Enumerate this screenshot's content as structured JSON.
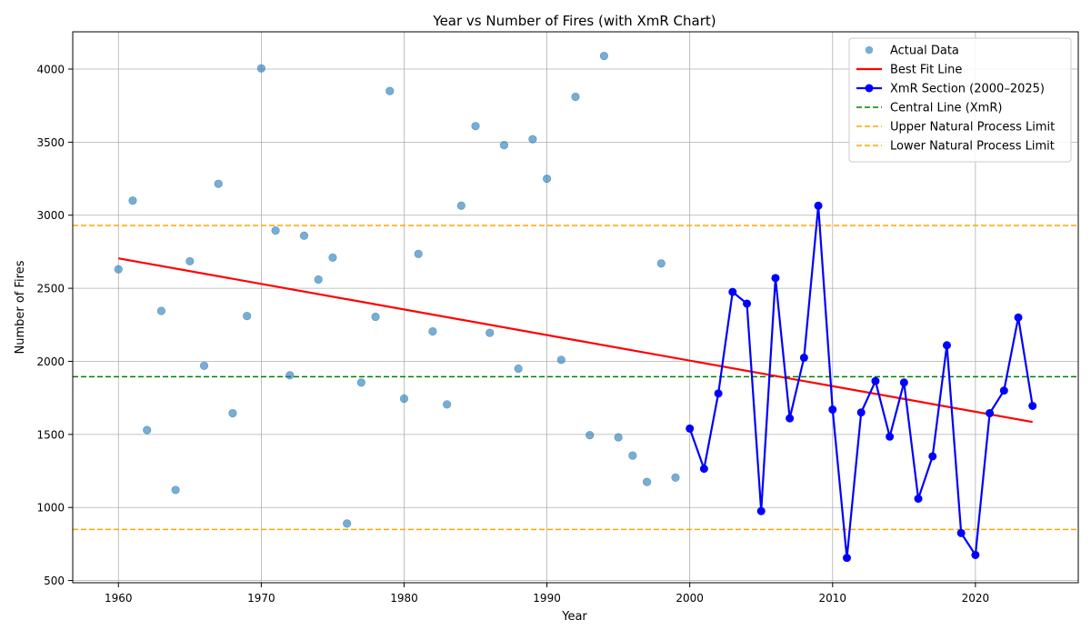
{
  "chart_data": {
    "type": "scatter",
    "title": "Year vs Number of Fires (with XmR Chart)",
    "xlabel": "Year",
    "ylabel": "Number of Fires",
    "xlim": [
      1956.8,
      2027.2
    ],
    "ylim": [
      485,
      4255
    ],
    "xticks": [
      1960,
      1970,
      1980,
      1990,
      2000,
      2010,
      2020
    ],
    "yticks": [
      500,
      1000,
      1500,
      2000,
      2500,
      3000,
      3500,
      4000
    ],
    "grid": true,
    "legend_position": "top-right",
    "series": [
      {
        "name": "Actual Data",
        "kind": "scatter",
        "color": "#1f77b4",
        "x": [
          1960,
          1961,
          1962,
          1963,
          1964,
          1965,
          1966,
          1967,
          1968,
          1969,
          1970,
          1971,
          1972,
          1973,
          1974,
          1975,
          1976,
          1977,
          1978,
          1979,
          1980,
          1981,
          1982,
          1983,
          1984,
          1985,
          1986,
          1987,
          1988,
          1989,
          1990,
          1991,
          1992,
          1993,
          1994,
          1995,
          1996,
          1997,
          1998,
          1999
        ],
        "y": [
          2630,
          3100,
          1530,
          2345,
          1120,
          2685,
          1970,
          3215,
          1645,
          2310,
          4005,
          2895,
          1905,
          2860,
          2560,
          2710,
          890,
          1855,
          2305,
          3850,
          1745,
          2735,
          2205,
          1705,
          3065,
          3610,
          2195,
          3480,
          1950,
          3520,
          3250,
          2010,
          3810,
          1495,
          4090,
          1480,
          1355,
          1175,
          2670,
          1205
        ]
      },
      {
        "name": "XmR Section (2000–2025)",
        "kind": "line-markers",
        "color": "#0000ff",
        "x": [
          2000,
          2001,
          2002,
          2003,
          2004,
          2005,
          2006,
          2007,
          2008,
          2009,
          2010,
          2011,
          2012,
          2013,
          2014,
          2015,
          2016,
          2017,
          2018,
          2019,
          2020,
          2021,
          2022,
          2023,
          2024
        ],
        "y": [
          1540,
          1265,
          1780,
          2475,
          2395,
          975,
          2570,
          1610,
          2025,
          3065,
          1670,
          655,
          1650,
          1865,
          1485,
          1855,
          1060,
          1350,
          2110,
          825,
          675,
          1645,
          1800,
          2300,
          1695
        ]
      }
    ],
    "best_fit": {
      "name": "Best Fit Line",
      "color": "#ff0000",
      "x": [
        1960,
        2024
      ],
      "y": [
        2705,
        1585
      ]
    },
    "reference_lines": [
      {
        "name": "Central Line (XmR)",
        "y": 1895,
        "color": "#008000"
      },
      {
        "name": "Upper Natural Process Limit",
        "y": 2930,
        "color": "#ffa500"
      },
      {
        "name": "Lower Natural Process Limit",
        "y": 850,
        "color": "#ffa500"
      }
    ],
    "legend": [
      {
        "label": "Actual Data",
        "style": "dot",
        "color": "#1f77b4"
      },
      {
        "label": "Best Fit Line",
        "style": "line",
        "color": "#ff0000"
      },
      {
        "label": "XmR Section (2000–2025)",
        "style": "line-dot",
        "color": "#0000ff"
      },
      {
        "label": "Central Line (XmR)",
        "style": "dash",
        "color": "#008000"
      },
      {
        "label": "Upper Natural Process Limit",
        "style": "dash",
        "color": "#ffa500"
      },
      {
        "label": "Lower Natural Process Limit",
        "style": "dash",
        "color": "#ffa500"
      }
    ]
  }
}
